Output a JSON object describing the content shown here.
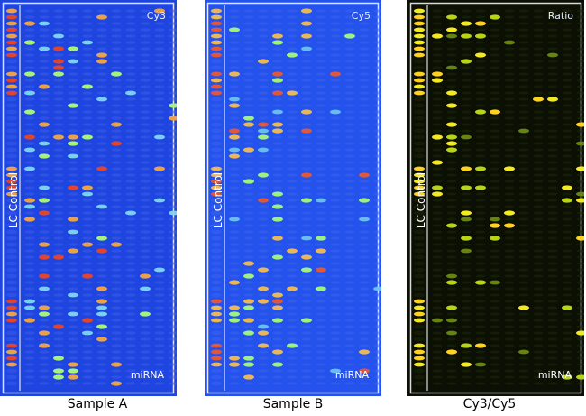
{
  "panels": [
    {
      "channel": "Cy3",
      "sample": "Sample A",
      "control_label": "LC Control",
      "region_label": "miRNA",
      "background": "#1f45e0",
      "colors": {
        "grid": "#3a5ee8",
        "low": "#7fd8f0",
        "mid": "#a7f27a",
        "high": "#e9a24a",
        "peak": "#e0452f"
      }
    },
    {
      "channel": "Cy5",
      "sample": "Sample B",
      "control_label": "LC Control",
      "region_label": "miRNA",
      "background": "#2452ec",
      "colors": {
        "grid": "#3b63ef",
        "low": "#6cc4ee",
        "mid": "#9ff081",
        "high": "#eab65a",
        "peak": "#e0573a"
      }
    },
    {
      "channel": "Ratio",
      "sample": "Cy3/Cy5",
      "control_label": "LC Control",
      "region_label": "miRNA",
      "background": "#0b0f04",
      "colors": {
        "grid": "#1e2a08",
        "low": "#6d8a12",
        "mid": "#b9d416",
        "high": "#f2ea22",
        "peak": "#ffd21f"
      }
    }
  ]
}
